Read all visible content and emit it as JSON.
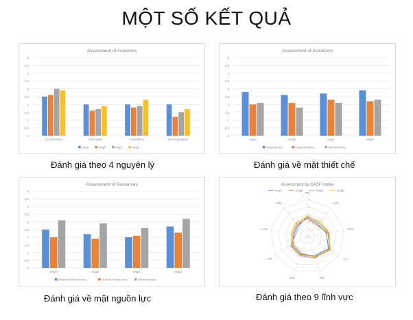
{
  "slide": {
    "title": "MỘT SỐ KẾT QUẢ",
    "captions": {
      "functions": "Đánh giá theo 4 nguyên lý",
      "institutions": "Đánh giá về mặt thiết chế",
      "resources": "Đánh giá về mặt nguồn lực",
      "casf": "Đánh giá theo 9 lĩnh vực"
    }
  },
  "chart_data": [
    {
      "id": "functions",
      "type": "bar",
      "title": "Assessment of Functions",
      "categories": [
        "Coordination",
        "Oversight",
        "Availability",
        "Non-regulation"
      ],
      "series": [
        {
          "name": "engA",
          "color": "#5b8fd6",
          "values": [
            2.5,
            2.0,
            2.0,
            2.0
          ]
        },
        {
          "name": "engB",
          "color": "#e7833b",
          "values": [
            2.6,
            1.6,
            1.8,
            1.2
          ]
        },
        {
          "name": "engC",
          "color": "#a5a5a5",
          "values": [
            3.0,
            1.7,
            1.9,
            1.5
          ]
        },
        {
          "name": "engD",
          "color": "#f5c02c",
          "values": [
            2.9,
            1.9,
            2.3,
            1.7
          ]
        }
      ],
      "ylim": [
        0,
        5
      ],
      "yticks": [
        "0",
        "0.5",
        "1",
        "1.5",
        "2",
        "2.5",
        "3",
        "3.5",
        "4",
        "4.5",
        "5"
      ],
      "grid": true,
      "legend": "bottom"
    },
    {
      "id": "institutions",
      "type": "bar",
      "title": "Assessment of Instiutions",
      "categories": [
        "engA",
        "engB",
        "engC",
        "engD"
      ],
      "series": [
        {
          "name": "Regulations",
          "color": "#5b8fd6",
          "values": [
            2.8,
            2.6,
            2.7,
            2.9
          ]
        },
        {
          "name": "Organizations",
          "color": "#e7833b",
          "values": [
            2.0,
            2.1,
            2.3,
            2.2
          ]
        },
        {
          "name": "Mechanisms",
          "color": "#a5a5a5",
          "values": [
            2.1,
            1.8,
            2.1,
            2.3
          ]
        }
      ],
      "ylim": [
        0,
        5
      ],
      "yticks": [
        "0",
        "0.5",
        "1",
        "1.5",
        "2",
        "2.5",
        "3",
        "3.5",
        "4",
        "4.5",
        "5"
      ],
      "grid": true,
      "legend": "bottom"
    },
    {
      "id": "resources",
      "type": "bar",
      "title": "Assessment of Resources",
      "categories": [
        "engA",
        "engB",
        "engC",
        "engD"
      ],
      "series": [
        {
          "name": "Financial Resources",
          "color": "#5b8fd6",
          "values": [
            2.5,
            2.2,
            2.0,
            2.7
          ]
        },
        {
          "name": "Human Resources",
          "color": "#e7833b",
          "values": [
            2.0,
            1.9,
            2.1,
            2.3
          ]
        },
        {
          "name": "Infrastructure",
          "color": "#a5a5a5",
          "values": [
            3.1,
            2.9,
            2.6,
            3.2
          ]
        }
      ],
      "ylim": [
        0,
        5
      ],
      "yticks": [
        "0",
        "0.5",
        "1",
        "1.5",
        "2",
        "2.5",
        "3",
        "3.5",
        "4",
        "4.5",
        "5"
      ],
      "grid": true,
      "legend": "bottom"
    },
    {
      "id": "casf",
      "type": "radar",
      "title": "Assessment by CASF model",
      "axes": [
        "PM",
        "ASS",
        "REV",
        "CA",
        "RE",
        "ICE",
        "VIS",
        "LAW",
        "OBL"
      ],
      "series": [
        {
          "name": "engA",
          "color": "#5b8fd6",
          "values": [
            2.6,
            2.2,
            2.6,
            3.3,
            2.8,
            2.6,
            2.4,
            1.8,
            2.0
          ]
        },
        {
          "name": "engB",
          "color": "#e7833b",
          "values": [
            2.4,
            2.0,
            2.8,
            3.6,
            3.0,
            2.4,
            2.2,
            2.0,
            2.2
          ]
        },
        {
          "name": "engC",
          "color": "#a5a5a5",
          "values": [
            2.8,
            2.4,
            2.9,
            3.4,
            3.1,
            2.8,
            2.6,
            1.6,
            1.8
          ]
        },
        {
          "name": "engD",
          "color": "#f5c02c",
          "values": [
            2.7,
            2.6,
            3.0,
            3.5,
            2.9,
            2.7,
            2.5,
            2.2,
            2.4
          ]
        }
      ],
      "rlim": [
        0,
        5
      ],
      "rticks": [
        "0",
        "1",
        "2",
        "3",
        "4",
        "5"
      ],
      "legend": "top"
    }
  ]
}
